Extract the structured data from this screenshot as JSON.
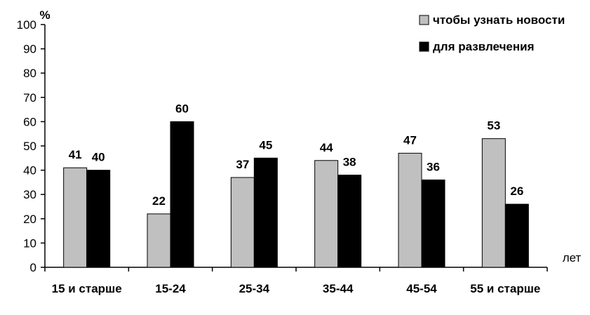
{
  "chart_data": {
    "type": "bar",
    "categories": [
      "15 и старше",
      "15-24",
      "25-34",
      "35-44",
      "45-54",
      "55 и старше"
    ],
    "series": [
      {
        "name": "чтобы узнать новости",
        "values": [
          41,
          22,
          37,
          44,
          47,
          53
        ],
        "color": "#c0c0c0"
      },
      {
        "name": "для развлечения",
        "values": [
          40,
          60,
          45,
          38,
          36,
          26
        ],
        "color": "#000000"
      }
    ],
    "ylabel": "%",
    "xlabel": "лет",
    "ylim": [
      0,
      100
    ],
    "yticks": [
      0,
      10,
      20,
      30,
      40,
      50,
      60,
      70,
      80,
      90,
      100
    ],
    "grid": false,
    "legend_position": "top-right"
  }
}
